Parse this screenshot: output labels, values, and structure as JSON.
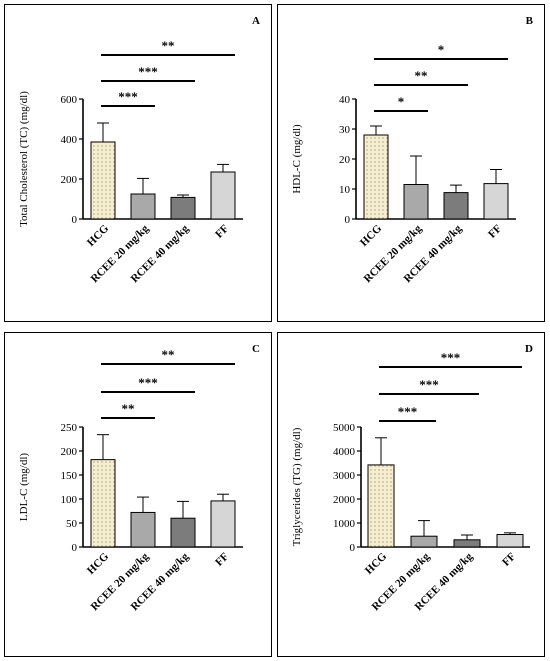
{
  "chart_data": [
    {
      "type": "bar",
      "panel_label": "A",
      "ylabel": "Total Cholesterol (TC) (mg/dl)",
      "categories": [
        "HCG",
        "RCEE 20 mg/kg",
        "RCEE 40 mg/kg",
        "FF"
      ],
      "values": [
        385,
        125,
        108,
        235
      ],
      "errors": [
        95,
        78,
        12,
        38
      ],
      "ylim": [
        0,
        600
      ],
      "yticks": [
        "0",
        "200",
        "400",
        "600"
      ],
      "significance": [
        "***",
        "***",
        "**"
      ],
      "colors": [
        "#f6eed0",
        "#a9a9a9",
        "#7c7c7c",
        "#d6d6d6"
      ],
      "hatch_first": true
    },
    {
      "type": "bar",
      "panel_label": "B",
      "ylabel": "HDL-C (mg/dl)",
      "categories": [
        "HCG",
        "RCEE 20 mg/kg",
        "RCEE 40 mg/kg",
        "FF"
      ],
      "values": [
        28,
        11.5,
        8.8,
        11.8
      ],
      "errors": [
        3,
        9.5,
        2.5,
        4.7
      ],
      "ylim": [
        0,
        40
      ],
      "yticks": [
        "0",
        "10",
        "20",
        "30",
        "40"
      ],
      "significance": [
        "*",
        "**",
        "*"
      ],
      "colors": [
        "#f6eed0",
        "#a9a9a9",
        "#7c7c7c",
        "#d6d6d6"
      ],
      "hatch_first": true
    },
    {
      "type": "bar",
      "panel_label": "C",
      "ylabel": "LDL-C (mg/dl)",
      "categories": [
        "HCG",
        "RCEE 20 mg/kg",
        "RCEE 40 mg/kg",
        "FF"
      ],
      "values": [
        182,
        72,
        60,
        96
      ],
      "errors": [
        52,
        32,
        35,
        14
      ],
      "ylim": [
        0,
        250
      ],
      "yticks": [
        "0",
        "50",
        "100",
        "150",
        "200",
        "250"
      ],
      "significance": [
        "**",
        "***",
        "**"
      ],
      "colors": [
        "#f6eed0",
        "#a9a9a9",
        "#7c7c7c",
        "#d6d6d6"
      ],
      "hatch_first": true
    },
    {
      "type": "bar",
      "panel_label": "D",
      "ylabel": "Triglycerides (TG) (mg/dl)",
      "categories": [
        "HCG",
        "RCEE 20 mg/kg",
        "RCEE 40 mg/kg",
        "FF"
      ],
      "values": [
        3420,
        450,
        300,
        520
      ],
      "errors": [
        1130,
        650,
        200,
        70
      ],
      "ylim": [
        0,
        5000
      ],
      "yticks": [
        "0",
        "1000",
        "2000",
        "3000",
        "4000",
        "5000"
      ],
      "significance": [
        "***",
        "***",
        "***"
      ],
      "colors": [
        "#f6eed0",
        "#a9a9a9",
        "#7c7c7c",
        "#d6d6d6"
      ],
      "hatch_first": true
    }
  ]
}
